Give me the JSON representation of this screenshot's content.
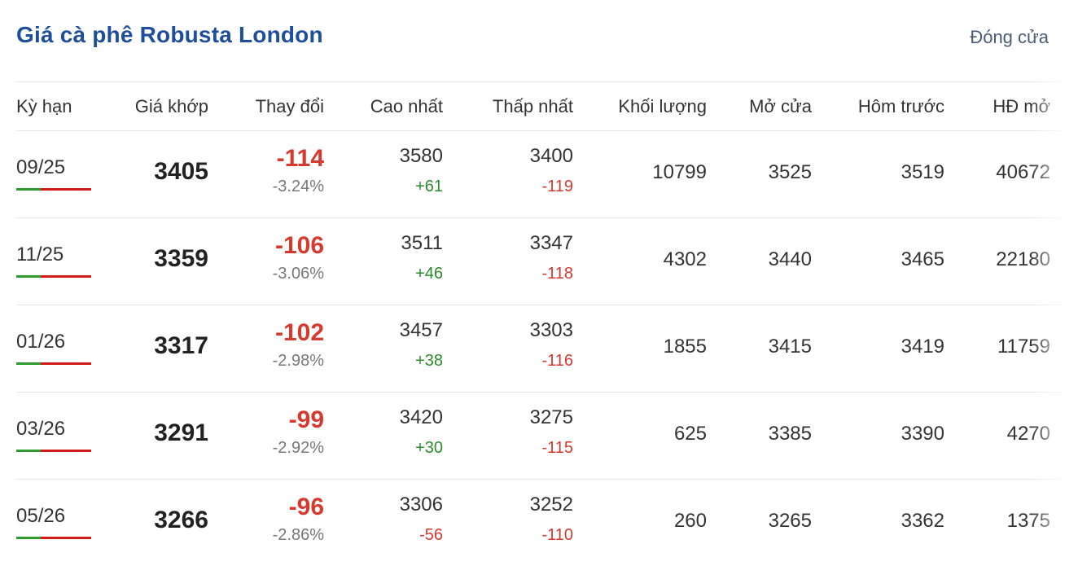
{
  "header": {
    "title": "Giá cà phê Robusta London",
    "close_label": "Đóng cửa"
  },
  "columns": [
    "Kỳ hạn",
    "Giá khớp",
    "Thay đổi",
    "Cao nhất",
    "Thấp nhất",
    "Khối lượng",
    "Mở cửa",
    "Hôm trước",
    "HĐ mở"
  ],
  "colors": {
    "title": "#1f4e9c",
    "down": "#d63a2f",
    "up": "#2a8c2a",
    "bar_up": "#2e9b2e",
    "bar_down": "#d11a1a"
  },
  "rows": [
    {
      "term": "09/25",
      "price": "3405",
      "change": "-114",
      "change_pct": "-3.24%",
      "high": "3580",
      "high_delta": "+61",
      "low": "3400",
      "low_delta": "-119",
      "volume": "10799",
      "open": "3525",
      "prev": "3519",
      "open_interest": "40672"
    },
    {
      "term": "11/25",
      "price": "3359",
      "change": "-106",
      "change_pct": "-3.06%",
      "high": "3511",
      "high_delta": "+46",
      "low": "3347",
      "low_delta": "-118",
      "volume": "4302",
      "open": "3440",
      "prev": "3465",
      "open_interest": "22180"
    },
    {
      "term": "01/26",
      "price": "3317",
      "change": "-102",
      "change_pct": "-2.98%",
      "high": "3457",
      "high_delta": "+38",
      "low": "3303",
      "low_delta": "-116",
      "volume": "1855",
      "open": "3415",
      "prev": "3419",
      "open_interest": "11759"
    },
    {
      "term": "03/26",
      "price": "3291",
      "change": "-99",
      "change_pct": "-2.92%",
      "high": "3420",
      "high_delta": "+30",
      "low": "3275",
      "low_delta": "-115",
      "volume": "625",
      "open": "3385",
      "prev": "3390",
      "open_interest": "4270"
    },
    {
      "term": "05/26",
      "price": "3266",
      "change": "-96",
      "change_pct": "-2.86%",
      "high": "3306",
      "high_delta": "-56",
      "low": "3252",
      "low_delta": "-110",
      "volume": "260",
      "open": "3265",
      "prev": "3362",
      "open_interest": "1375"
    }
  ]
}
